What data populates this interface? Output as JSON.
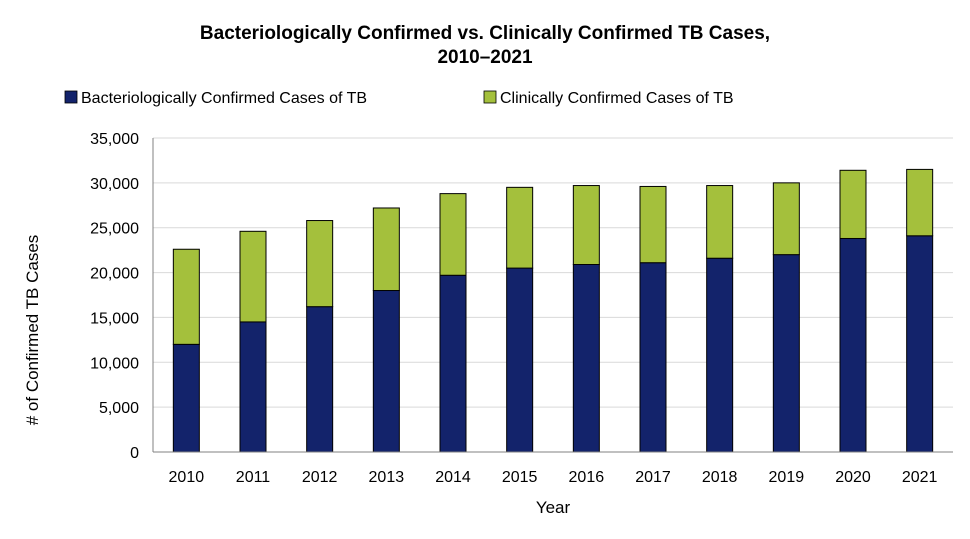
{
  "chart_data": {
    "type": "bar",
    "stacked": true,
    "title_line1": "Bacteriologically Confirmed vs. Clinically Confirmed TB Cases,",
    "title_line2": "2010–2021",
    "xlabel": "Year",
    "ylabel": "# of Confirmed TB Cases",
    "ylim": [
      0,
      35000
    ],
    "yticks": [
      0,
      5000,
      10000,
      15000,
      20000,
      25000,
      30000,
      35000
    ],
    "ytick_labels": [
      "0",
      "5,000",
      "10,000",
      "15,000",
      "20,000",
      "25,000",
      "30,000",
      "35,000"
    ],
    "grid": true,
    "legend_position": "top",
    "categories": [
      "2010",
      "2011",
      "2012",
      "2013",
      "2014",
      "2015",
      "2016",
      "2017",
      "2018",
      "2019",
      "2020",
      "2021"
    ],
    "series": [
      {
        "name": "Bacteriologically Confirmed Cases of TB",
        "color": "#13236B",
        "values": [
          12000,
          14500,
          16200,
          18000,
          19700,
          20500,
          20900,
          21100,
          21600,
          22000,
          23800,
          24100
        ]
      },
      {
        "name": "Clinically Confirmed Cases of TB",
        "color": "#A4C03C",
        "values": [
          10600,
          10100,
          9600,
          9200,
          9100,
          9000,
          8800,
          8500,
          8100,
          8000,
          7600,
          7400
        ]
      }
    ]
  }
}
